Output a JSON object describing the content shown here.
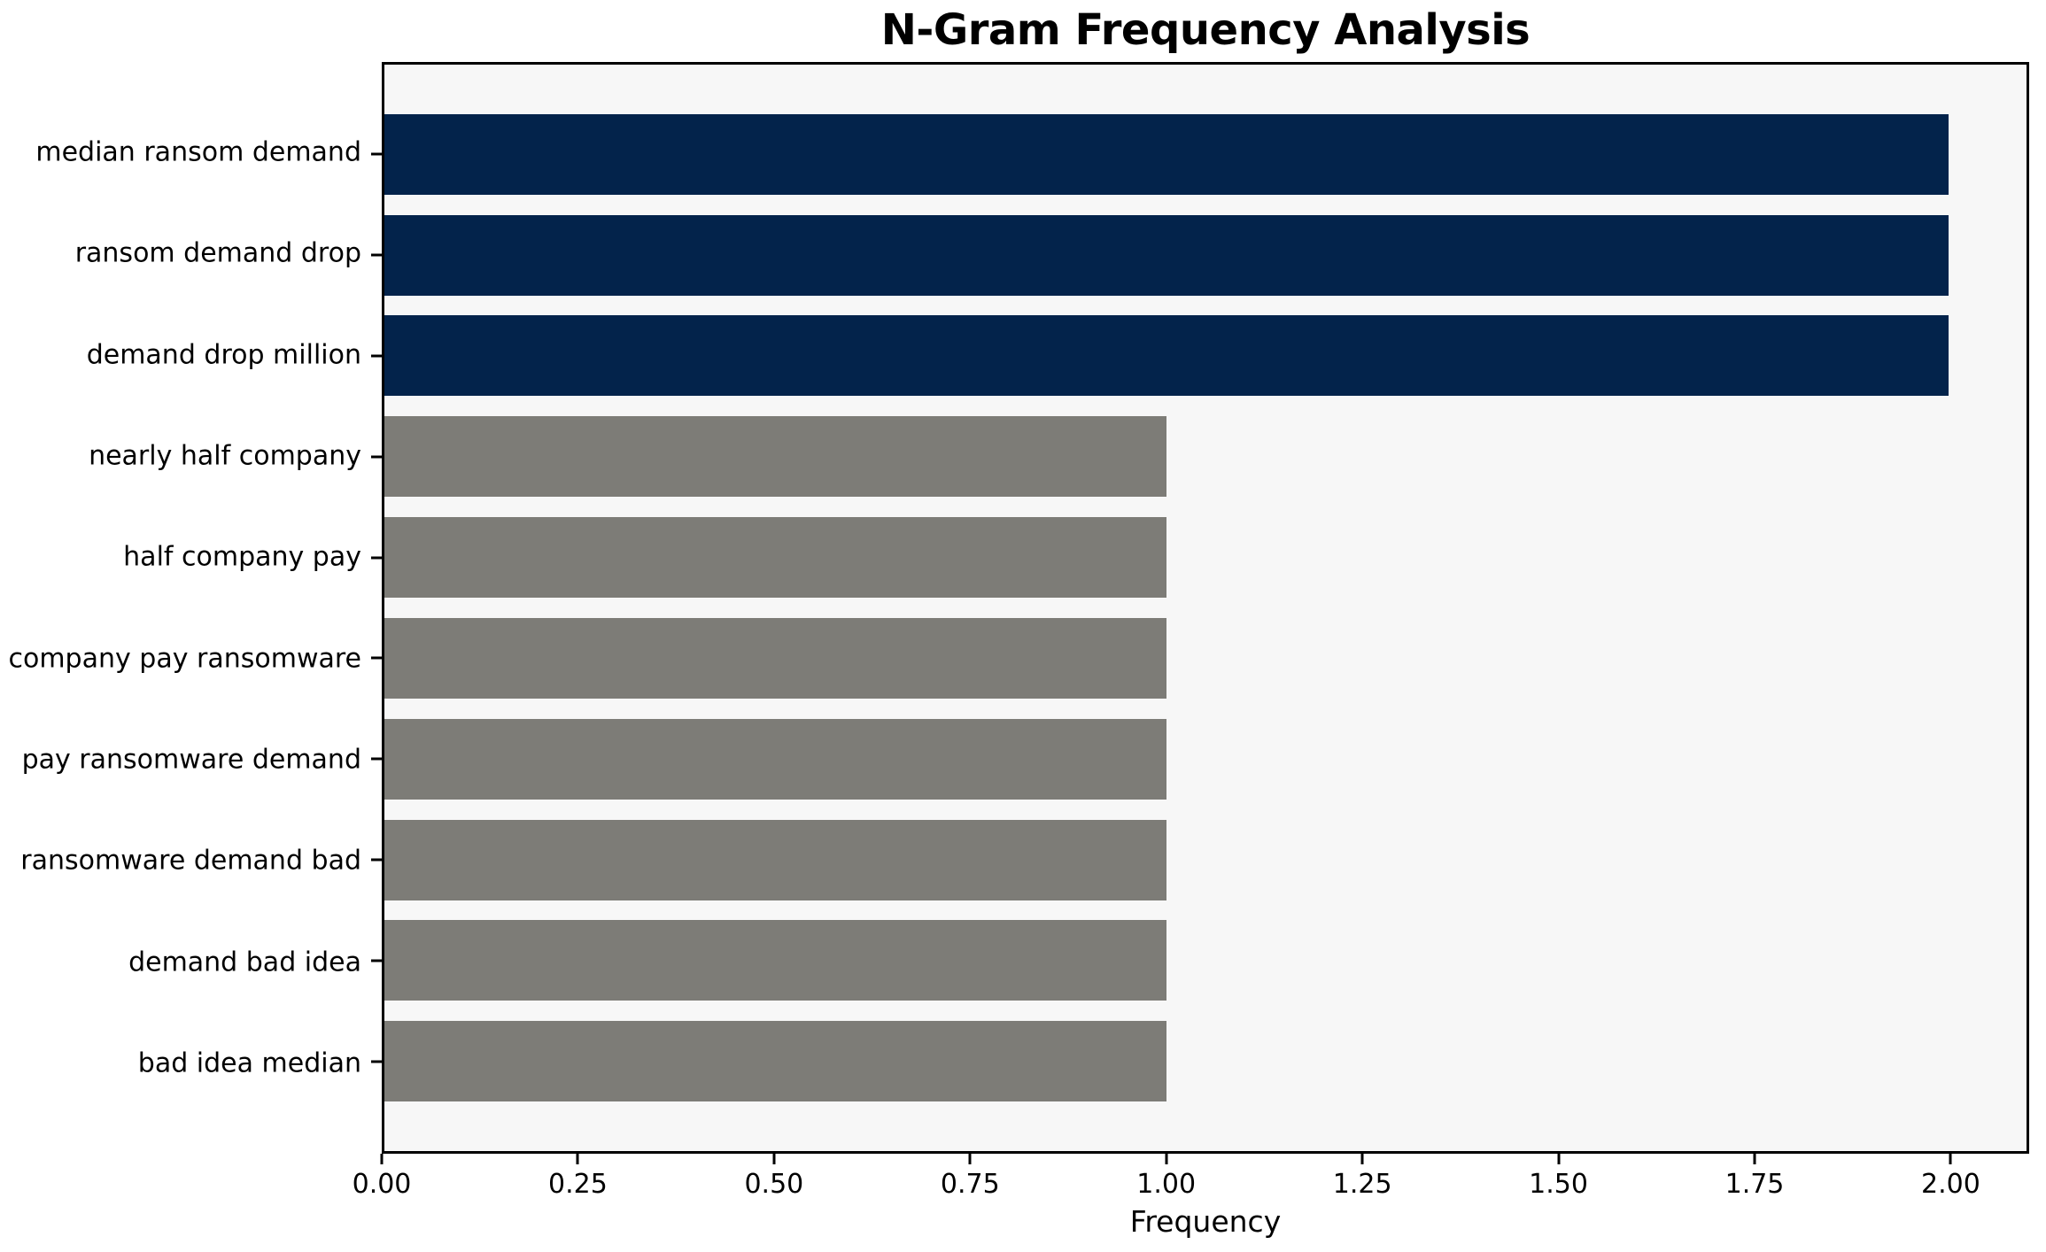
{
  "chart_data": {
    "type": "bar",
    "orientation": "horizontal",
    "title": "N-Gram Frequency Analysis",
    "xlabel": "Frequency",
    "ylabel": "",
    "categories": [
      "median ransom demand",
      "ransom demand drop",
      "demand drop million",
      "nearly half company",
      "half company pay",
      "company pay ransomware",
      "pay ransomware demand",
      "ransomware demand bad",
      "demand bad idea",
      "bad idea median"
    ],
    "values": [
      2,
      2,
      2,
      1,
      1,
      1,
      1,
      1,
      1,
      1
    ],
    "bar_colors": [
      "#03234b",
      "#03234b",
      "#03234b",
      "#7d7c77",
      "#7d7c77",
      "#7d7c77",
      "#7d7c77",
      "#7d7c77",
      "#7d7c77",
      "#7d7c77"
    ],
    "xlim": [
      0,
      2.1
    ],
    "xticks": [
      {
        "value": 0.0,
        "label": "0.00"
      },
      {
        "value": 0.25,
        "label": "0.25"
      },
      {
        "value": 0.5,
        "label": "0.50"
      },
      {
        "value": 0.75,
        "label": "0.75"
      },
      {
        "value": 1.0,
        "label": "1.00"
      },
      {
        "value": 1.25,
        "label": "1.25"
      },
      {
        "value": 1.5,
        "label": "1.50"
      },
      {
        "value": 1.75,
        "label": "1.75"
      },
      {
        "value": 2.0,
        "label": "2.00"
      }
    ],
    "grid": false,
    "legend": false,
    "colors": {
      "plot_background": "#f7f7f7",
      "figure_background": "#ffffff",
      "spine": "#000000",
      "text": "#000000",
      "high_frequency_bar": "#03234b",
      "low_frequency_bar": "#7d7c77"
    }
  }
}
